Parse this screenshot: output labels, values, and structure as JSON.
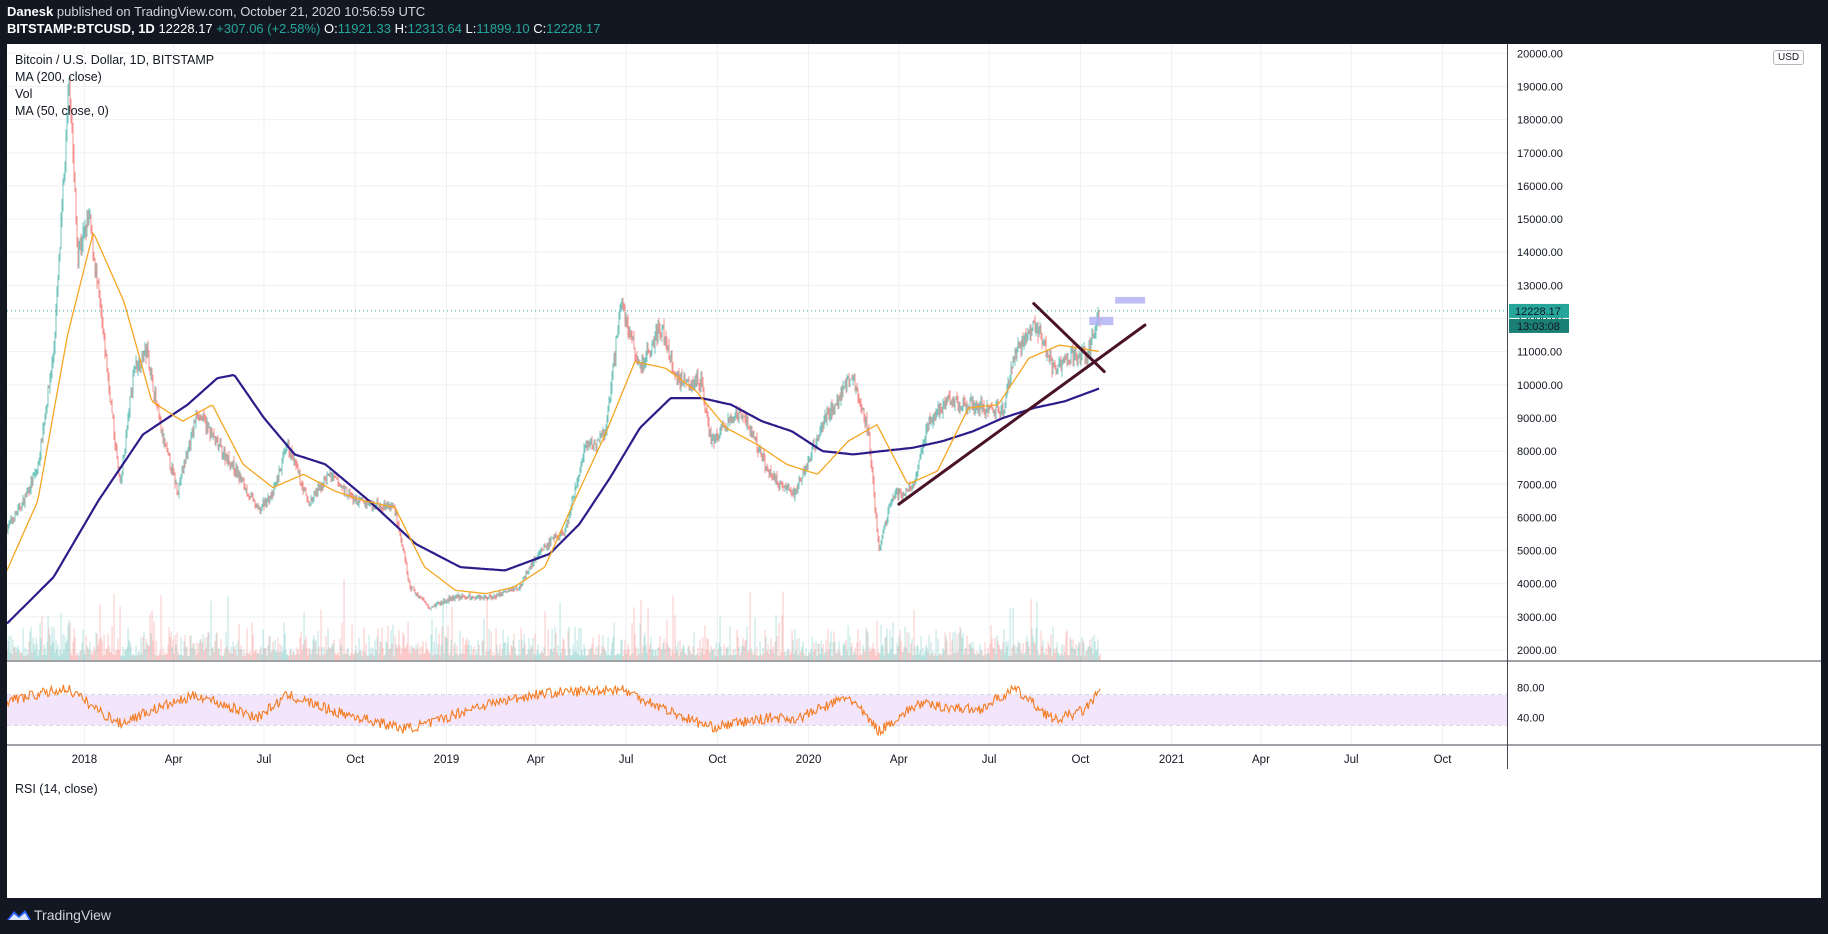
{
  "header": {
    "author": "Danesk",
    "published_text": "published on TradingView.com, October 21, 2020 10:56:59 UTC",
    "symbol": "BITSTAMP:BTCUSD, 1D",
    "last": "12228.17",
    "change": "+307.06 (+2.58%)",
    "open_label": "O:",
    "open": "11921.33",
    "high_label": "H:",
    "high": "12313.64",
    "low_label": "L:",
    "low": "11899.10",
    "close_label": "C:",
    "close": "12228.17"
  },
  "legend": {
    "title": "Bitcoin / U.S. Dollar, 1D, BITSTAMP",
    "ma200": "MA (200, close)",
    "vol": "Vol",
    "ma50": "MA (50, close, 0)",
    "rsi": "RSI (14, close)"
  },
  "currency_badge": "USD",
  "price_tag": {
    "price": "12228.17",
    "countdown": "13:03:08"
  },
  "footer": {
    "brand": "TradingView"
  },
  "colors": {
    "background": "#131722",
    "up": "#26a69a",
    "down": "#ef5350",
    "ma200": "#2d1b8a",
    "ma50": "#f5a623",
    "trendline": "#4a1228",
    "rsi": "#f57c22",
    "rsi_band": "#f3e5fb",
    "target_box": "#b3b3f5"
  },
  "chart_data": {
    "type": "line",
    "title": "Bitcoin / U.S. Dollar, 1D, BITSTAMP",
    "x_ticks": [
      "2018",
      "Apr",
      "Jul",
      "Oct",
      "2019",
      "Apr",
      "Jul",
      "Oct",
      "2020",
      "Apr",
      "Jul",
      "Oct",
      "2021",
      "Apr",
      "Jul",
      "Oct"
    ],
    "y_ticks": [
      "20000.00",
      "19000.00",
      "18000.00",
      "17000.00",
      "16000.00",
      "15000.00",
      "14000.00",
      "13000.00",
      "12000.00",
      "11000.00",
      "10000.00",
      "9000.00",
      "8000.00",
      "7000.00",
      "6000.00",
      "5000.00",
      "4000.00",
      "3000.00",
      "2000.00"
    ],
    "ylim": [
      2000,
      20000
    ],
    "rsi_ticks": [
      "80.00",
      "40.00"
    ],
    "rsi_band": [
      30,
      70
    ],
    "series": [
      {
        "name": "Bitcoin / U.S. Dollar",
        "x": [
          "2017-10-15",
          "2017-11-01",
          "2017-11-15",
          "2017-12-01",
          "2017-12-10",
          "2017-12-17",
          "2017-12-25",
          "2018-01-06",
          "2018-01-20",
          "2018-02-06",
          "2018-02-20",
          "2018-03-05",
          "2018-03-20",
          "2018-04-05",
          "2018-04-25",
          "2018-05-15",
          "2018-06-01",
          "2018-06-25",
          "2018-07-10",
          "2018-07-25",
          "2018-08-15",
          "2018-09-05",
          "2018-10-01",
          "2018-11-10",
          "2018-11-25",
          "2018-12-15",
          "2019-01-10",
          "2019-02-15",
          "2019-03-15",
          "2019-04-05",
          "2019-05-01",
          "2019-05-20",
          "2019-06-10",
          "2019-06-26",
          "2019-07-15",
          "2019-08-05",
          "2019-08-20",
          "2019-09-15",
          "2019-09-25",
          "2019-10-25",
          "2019-11-25",
          "2019-12-18",
          "2020-01-15",
          "2020-02-13",
          "2020-03-01",
          "2020-03-12",
          "2020-03-25",
          "2020-04-15",
          "2020-05-01",
          "2020-05-20",
          "2020-06-15",
          "2020-07-15",
          "2020-07-27",
          "2020-08-17",
          "2020-09-05",
          "2020-09-20",
          "2020-10-08",
          "2020-10-21"
        ],
        "values": [
          5700,
          6500,
          7500,
          11000,
          15500,
          19300,
          14000,
          15000,
          11500,
          6900,
          10500,
          11000,
          8500,
          6800,
          9200,
          8200,
          7500,
          6200,
          6700,
          8200,
          6400,
          7300,
          6500,
          6300,
          3900,
          3300,
          3600,
          3600,
          3900,
          5000,
          5600,
          8000,
          8500,
          12500,
          10500,
          11800,
          10200,
          10100,
          8300,
          9200,
          7200,
          6700,
          8800,
          10300,
          8700,
          5000,
          6600,
          6900,
          8900,
          9500,
          9400,
          9200,
          11000,
          11900,
          10400,
          10900,
          10900,
          12228
        ]
      },
      {
        "name": "MA (200, close)",
        "x": [
          "2017-10-15",
          "2017-12-01",
          "2018-01-15",
          "2018-03-01",
          "2018-04-15",
          "2018-05-15",
          "2018-06-01",
          "2018-07-01",
          "2018-08-01",
          "2018-09-01",
          "2018-10-15",
          "2018-12-01",
          "2019-01-15",
          "2019-03-01",
          "2019-04-15",
          "2019-05-15",
          "2019-06-15",
          "2019-07-15",
          "2019-08-15",
          "2019-09-15",
          "2019-10-15",
          "2019-11-15",
          "2019-12-15",
          "2020-01-15",
          "2020-02-15",
          "2020-03-15",
          "2020-04-15",
          "2020-05-15",
          "2020-06-15",
          "2020-07-15",
          "2020-08-15",
          "2020-09-15",
          "2020-10-21"
        ],
        "values": [
          2800,
          4200,
          6500,
          8500,
          9400,
          10200,
          10300,
          9000,
          7900,
          7600,
          6500,
          5200,
          4500,
          4400,
          4900,
          5800,
          7200,
          8700,
          9600,
          9600,
          9400,
          8900,
          8600,
          8000,
          7900,
          8000,
          8100,
          8300,
          8600,
          9000,
          9300,
          9500,
          9900
        ]
      },
      {
        "name": "MA (50, close, 0)",
        "x": [
          "2017-10-15",
          "2017-11-15",
          "2017-12-15",
          "2018-01-10",
          "2018-02-10",
          "2018-03-10",
          "2018-04-10",
          "2018-05-10",
          "2018-06-10",
          "2018-07-10",
          "2018-08-10",
          "2018-09-10",
          "2018-10-10",
          "2018-11-10",
          "2018-12-10",
          "2019-01-10",
          "2019-02-10",
          "2019-03-10",
          "2019-04-10",
          "2019-05-10",
          "2019-06-10",
          "2019-07-10",
          "2019-08-10",
          "2019-09-10",
          "2019-10-10",
          "2019-11-10",
          "2019-12-10",
          "2020-01-10",
          "2020-02-10",
          "2020-03-10",
          "2020-04-10",
          "2020-05-10",
          "2020-06-10",
          "2020-07-10",
          "2020-08-10",
          "2020-09-10",
          "2020-10-21"
        ],
        "values": [
          4400,
          6500,
          11500,
          14600,
          12500,
          9500,
          8900,
          9400,
          7600,
          6900,
          7300,
          6800,
          6500,
          6300,
          4500,
          3800,
          3700,
          3900,
          4500,
          6500,
          8500,
          10700,
          10500,
          9800,
          8700,
          8200,
          7600,
          7300,
          8300,
          8800,
          7000,
          7400,
          9300,
          9400,
          10800,
          11200,
          11000
        ]
      },
      {
        "name": "RSI (14, close)",
        "x": [
          "2017-10-15",
          "2017-12-15",
          "2018-01-20",
          "2018-02-06",
          "2018-03-10",
          "2018-04-25",
          "2018-06-25",
          "2018-07-25",
          "2018-09-10",
          "2018-11-20",
          "2018-12-15",
          "2019-02-01",
          "2019-04-05",
          "2019-06-26",
          "2019-08-25",
          "2019-09-25",
          "2019-11-25",
          "2019-12-20",
          "2020-02-10",
          "2020-03-12",
          "2020-04-20",
          "2020-06-20",
          "2020-07-27",
          "2020-09-05",
          "2020-10-05",
          "2020-10-21"
        ],
        "values": [
          62,
          79,
          45,
          32,
          50,
          70,
          40,
          70,
          48,
          25,
          32,
          55,
          72,
          78,
          42,
          27,
          40,
          38,
          68,
          22,
          58,
          50,
          78,
          36,
          50,
          75
        ]
      }
    ]
  }
}
